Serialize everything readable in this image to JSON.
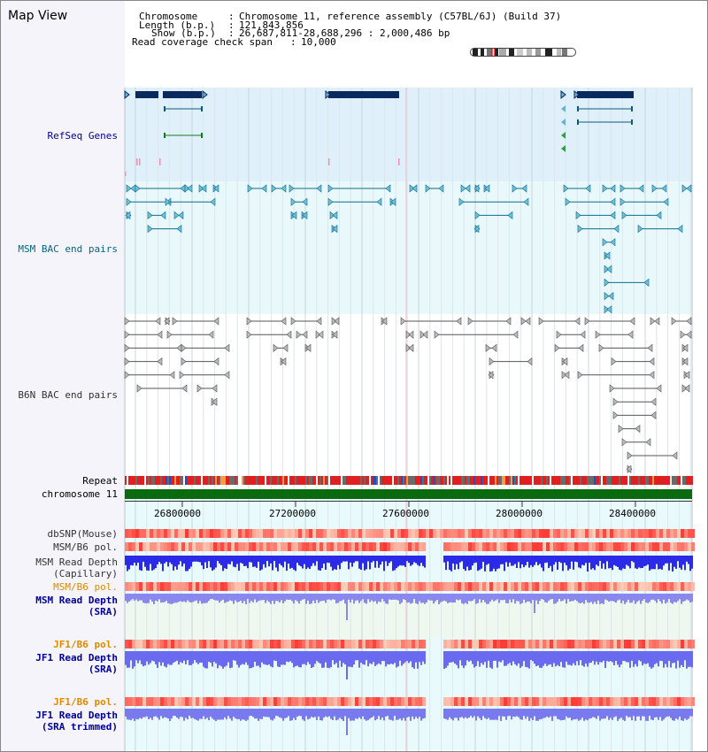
{
  "title": "Map View",
  "info": {
    "chromosome_label": "Chromosome",
    "chromosome_value": "Chromosome 11, reference assembly (C57BL/6J) (Build 37)",
    "length_label": "Length (b.p.)",
    "length_value": "121,843,856",
    "show_label": "Show (b.p.)",
    "show_value": "26,687,811-28,688,296 : 2,000,486 bp",
    "coverage_label": "Read coverage check span",
    "coverage_value": "10,000"
  },
  "tracks": {
    "refseq": "RefSeq Genes",
    "msm_bac": "MSM BAC end pairs",
    "b6n_bac": "B6N BAC end pairs",
    "repeat": "Repeat",
    "chromosome": "chromosome 11",
    "dbsnp": "dbSNP(Mouse)",
    "msm_b6_pol_1": "MSM/B6 pol.",
    "msm_depth_cap_1": "MSM Read Depth",
    "msm_depth_cap_2": "(Capillary)",
    "msm_b6_pol_2": "MSM/B6 pol.",
    "msm_depth_sra_1": "MSM Read Depth",
    "msm_depth_sra_2": "(SRA)",
    "jf1_b6_pol_1": "JF1/B6 pol.",
    "jf1_depth_sra_1": "JF1 Read Depth",
    "jf1_depth_sra_2": "(SRA)",
    "jf1_b6_pol_2": "JF1/B6 pol.",
    "jf1_depth_trim_1": "JF1 Read Depth",
    "jf1_depth_trim_2": "(SRA trimmed)"
  },
  "axis": {
    "ticks": [
      "26800000",
      "27200000",
      "27600000",
      "28000000",
      "28400000"
    ]
  },
  "colors": {
    "refseq_label": "#000099",
    "msm_bac_label": "#006688",
    "b6n_label": "#333333",
    "pol_orange": "#e08a00",
    "depth_blue": "#000099",
    "refseq_bg": "#dff0fa",
    "msm_bg": "#e8f8fb",
    "b6n_bg": "#ffffff",
    "gene_dark": "#0a2a5e",
    "msm_line": "#0e6d8c",
    "b6n_line": "#555555"
  }
}
